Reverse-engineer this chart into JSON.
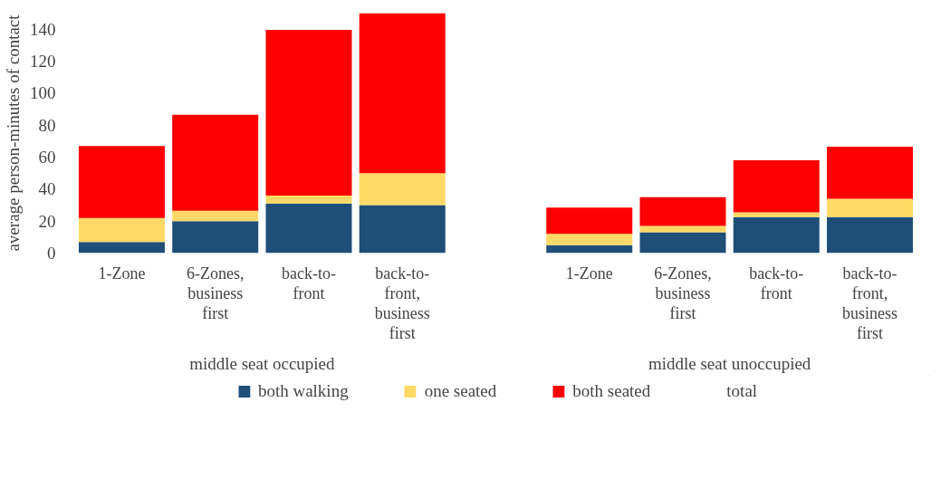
{
  "chart_data": {
    "type": "bar",
    "stacked": true,
    "ylabel": "average person-minutes of contact",
    "categories": [
      "1-Zone",
      "6-Zones,\nbusiness\nfirst",
      "back-to-\nfront",
      "back-to-\nfront,\nbusiness\nfirst",
      null,
      "1-Zone",
      "6-Zones,\nbusiness\nfirst",
      "back-to-\nfront",
      "back-to-\nfront,\nbusiness\nfirst"
    ],
    "series": [
      {
        "name": "both walking",
        "color": "#1f4e79",
        "values": [
          7,
          20,
          31,
          30,
          null,
          5,
          13,
          22.5,
          22.5
        ]
      },
      {
        "name": "one seated",
        "color": "#ffd966",
        "values": [
          15,
          6.5,
          5,
          20,
          null,
          7,
          4,
          3,
          11.5
        ]
      },
      {
        "name": "both seated",
        "color": "#ff0000",
        "values": [
          45,
          60,
          103.5,
          100,
          null,
          16.5,
          18,
          32.5,
          32.5
        ]
      },
      {
        "name": "total",
        "values": [
          null,
          null,
          null,
          null,
          null,
          null,
          null,
          null,
          null
        ]
      }
    ],
    "ylim": [
      0,
      150
    ],
    "yticks": [
      0,
      20,
      40,
      60,
      80,
      100,
      120,
      140
    ],
    "annotations": [
      "middle seat occupied",
      "middle seat unoccupied"
    ],
    "legend": "bottom"
  }
}
